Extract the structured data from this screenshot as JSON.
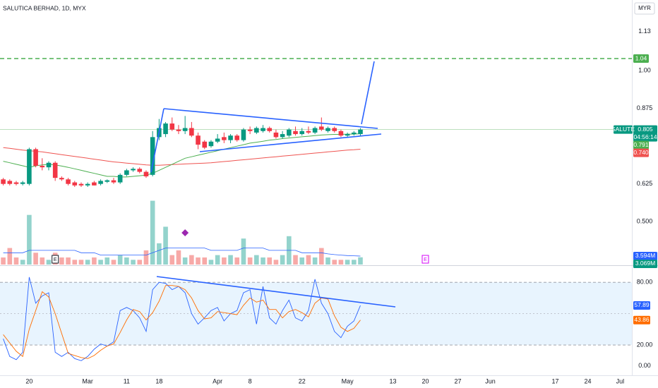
{
  "chart_data": [
    {
      "type": "candlestick",
      "title": "SALUTICA BERHAD, 1D, MYX",
      "currency": "MYR",
      "open": [
        0.64,
        0.635,
        0.63,
        0.625,
        0.625,
        0.74,
        0.685,
        0.68,
        0.695,
        0.645,
        0.64,
        0.63,
        0.625,
        0.62,
        0.63,
        0.625,
        0.632,
        0.637,
        0.63,
        0.655,
        0.67,
        0.675,
        0.665,
        0.655,
        0.78,
        0.79,
        0.825,
        0.805,
        0.8,
        0.81,
        0.785,
        0.765,
        0.75,
        0.765,
        0.78,
        0.77,
        0.785,
        0.77,
        0.805,
        0.795,
        0.8,
        0.81,
        0.795,
        0.78,
        0.785,
        0.8,
        0.79,
        0.8,
        0.795,
        0.815,
        0.8,
        0.81,
        0.8,
        0.785,
        0.79,
        0.79
      ],
      "high": [
        0.645,
        0.64,
        0.635,
        0.635,
        0.745,
        0.745,
        0.71,
        0.7,
        0.7,
        0.65,
        0.645,
        0.635,
        0.63,
        0.63,
        0.635,
        0.64,
        0.64,
        0.645,
        0.66,
        0.675,
        0.68,
        0.68,
        0.67,
        0.8,
        0.84,
        0.83,
        0.845,
        0.82,
        0.85,
        0.83,
        0.795,
        0.77,
        0.77,
        0.79,
        0.795,
        0.79,
        0.79,
        0.81,
        0.815,
        0.815,
        0.82,
        0.815,
        0.805,
        0.8,
        0.81,
        0.815,
        0.81,
        0.815,
        0.815,
        0.845,
        0.815,
        0.815,
        0.805,
        0.795,
        0.8,
        0.81
      ],
      "low": [
        0.62,
        0.62,
        0.62,
        0.62,
        0.62,
        0.68,
        0.67,
        0.67,
        0.635,
        0.635,
        0.62,
        0.615,
        0.615,
        0.615,
        0.62,
        0.62,
        0.628,
        0.625,
        0.625,
        0.65,
        0.665,
        0.66,
        0.645,
        0.65,
        0.77,
        0.78,
        0.8,
        0.79,
        0.79,
        0.78,
        0.74,
        0.74,
        0.745,
        0.76,
        0.76,
        0.76,
        0.765,
        0.765,
        0.79,
        0.79,
        0.795,
        0.795,
        0.775,
        0.775,
        0.78,
        0.785,
        0.785,
        0.79,
        0.79,
        0.8,
        0.795,
        0.795,
        0.78,
        0.78,
        0.785,
        0.785
      ],
      "close": [
        0.625,
        0.625,
        0.625,
        0.63,
        0.74,
        0.685,
        0.68,
        0.695,
        0.645,
        0.64,
        0.625,
        0.62,
        0.62,
        0.625,
        0.62,
        0.635,
        0.637,
        0.63,
        0.655,
        0.67,
        0.675,
        0.665,
        0.65,
        0.78,
        0.81,
        0.825,
        0.805,
        0.8,
        0.81,
        0.785,
        0.755,
        0.745,
        0.765,
        0.775,
        0.77,
        0.785,
        0.77,
        0.805,
        0.8,
        0.81,
        0.81,
        0.8,
        0.78,
        0.79,
        0.805,
        0.79,
        0.8,
        0.795,
        0.81,
        0.805,
        0.81,
        0.8,
        0.785,
        0.79,
        0.795,
        0.805
      ],
      "ma_fast": [
        0.7,
        0.695,
        0.69,
        0.685,
        0.68,
        0.685,
        0.688,
        0.69,
        0.688,
        0.684,
        0.68,
        0.675,
        0.67,
        0.665,
        0.66,
        0.655,
        0.65,
        0.65,
        0.648,
        0.648,
        0.65,
        0.652,
        0.654,
        0.66,
        0.67,
        0.68,
        0.69,
        0.7,
        0.71,
        0.715,
        0.72,
        0.725,
        0.73,
        0.735,
        0.74,
        0.745,
        0.75,
        0.755,
        0.76,
        0.763,
        0.766,
        0.77,
        0.772,
        0.775,
        0.777,
        0.779,
        0.781,
        0.783,
        0.785,
        0.787,
        0.788,
        0.789,
        0.789,
        0.79,
        0.79,
        0.791
      ],
      "ma_slow": [
        0.745,
        0.743,
        0.74,
        0.737,
        0.735,
        0.733,
        0.731,
        0.728,
        0.725,
        0.722,
        0.719,
        0.716,
        0.713,
        0.71,
        0.707,
        0.704,
        0.701,
        0.698,
        0.696,
        0.694,
        0.692,
        0.69,
        0.688,
        0.687,
        0.687,
        0.688,
        0.689,
        0.69,
        0.691,
        0.692,
        0.693,
        0.694,
        0.695,
        0.697,
        0.699,
        0.701,
        0.703,
        0.705,
        0.707,
        0.709,
        0.711,
        0.713,
        0.715,
        0.717,
        0.719,
        0.721,
        0.723,
        0.725,
        0.727,
        0.729,
        0.731,
        0.733,
        0.735,
        0.737,
        0.738,
        0.74
      ],
      "volume": [
        3,
        7,
        3,
        2,
        21,
        5,
        3,
        2,
        5,
        3,
        3,
        2,
        2,
        2,
        3,
        2,
        3,
        2,
        4,
        3,
        2,
        2,
        6,
        27,
        9,
        16,
        4,
        6,
        3,
        4,
        3,
        3,
        2,
        4,
        3,
        4,
        3,
        11,
        3,
        4,
        3,
        3,
        2,
        4,
        12,
        4,
        3,
        4,
        3,
        7,
        3,
        2,
        2,
        2,
        2,
        3.069
      ],
      "volume_ma": [
        5,
        5,
        5,
        5,
        6,
        6,
        6,
        6,
        6,
        6,
        6,
        6,
        5,
        5,
        5,
        4,
        4,
        4,
        4,
        4,
        4,
        4,
        4,
        5,
        6,
        7,
        7,
        7,
        7,
        7,
        7,
        7,
        6,
        6,
        6,
        6,
        6,
        7,
        7,
        7,
        7,
        6,
        6,
        6,
        6,
        6,
        5,
        5,
        5,
        5,
        4.5,
        4.2,
        4,
        3.8,
        3.7,
        3.594
      ],
      "up_color": "#089981",
      "down_color": "#f23645",
      "volume_up_color": "#93d3cc",
      "volume_down_color": "#f7a9a7",
      "ma_fast_color": "#4caf50",
      "ma_slow_color": "#ef5350",
      "volume_ma_color": "#2962ff",
      "xlim": [
        -0.5,
        96.8
      ],
      "ylim": [
        0.358,
        1.234
      ],
      "vlim": [
        0,
        40
      ],
      "yticks": [
        1.13,
        {
          "value": 1,
          "label": "1.00"
        },
        0.875,
        0.625,
        {
          "value": 0.5,
          "label": "0.500"
        }
      ],
      "grid": false,
      "target_level": 1.04,
      "target_color": "#4caf50",
      "earnings": [
        8,
        65
      ],
      "earnings_label": "E",
      "dividends": [
        28
      ],
      "last_labels": {
        "symbol": "SALUTE",
        "close": "0.805",
        "countdown": "04:56:14",
        "ma_fast": "0.791",
        "ma_slow": "0.740",
        "volume_ma": "3.594M",
        "volume": "3.069M",
        "target": "1.04"
      }
    },
    {
      "type": "line",
      "series": [
        {
          "color": "#2962ff",
          "values": [
            26,
            9,
            6,
            13,
            85,
            60,
            67,
            70,
            13,
            9,
            13,
            7,
            5,
            9,
            16,
            21,
            19,
            23,
            53,
            56,
            53,
            46,
            33,
            73,
            80,
            79,
            73,
            76,
            70,
            50,
            40,
            46,
            53,
            56,
            43,
            50,
            53,
            70,
            73,
            40,
            76,
            46,
            40,
            53,
            63,
            46,
            43,
            53,
            83,
            60,
            50,
            33,
            27,
            38,
            43,
            57.89
          ]
        },
        {
          "color": "#ff6d00",
          "values": [
            30,
            22,
            14,
            9,
            35,
            53,
            71,
            66,
            50,
            31,
            12,
            10,
            8,
            7,
            10,
            15,
            19,
            21,
            32,
            44,
            54,
            52,
            44,
            51,
            62,
            77,
            77,
            76,
            73,
            65,
            53,
            45,
            46,
            52,
            51,
            50,
            49,
            58,
            65,
            61,
            63,
            54,
            54,
            46,
            52,
            54,
            51,
            47,
            60,
            65,
            64,
            48,
            37,
            33,
            36,
            43.86
          ]
        }
      ],
      "value_labels": [
        "57.89",
        "43.86"
      ],
      "xlim": [
        -0.5,
        96.8
      ],
      "ylim": [
        -9,
        95
      ],
      "yticks": [
        {
          "value": 80,
          "label": "80.00"
        },
        {
          "value": 20,
          "label": "20.00"
        },
        {
          "value": 0,
          "label": "0.00"
        }
      ],
      "band": [
        20,
        80
      ],
      "midline": 50,
      "xticks": [
        {
          "value": 4,
          "label": "20"
        },
        {
          "value": 13,
          "label": "Mar"
        },
        {
          "value": 19,
          "label": "11"
        },
        {
          "value": 24,
          "label": "18"
        },
        {
          "value": 33,
          "label": "Apr"
        },
        {
          "value": 38,
          "label": "8"
        },
        {
          "value": 46,
          "label": "22"
        },
        {
          "value": 53,
          "label": "May"
        },
        {
          "value": 60,
          "label": "13"
        },
        {
          "value": 65,
          "label": "20"
        },
        {
          "value": 70,
          "label": "27"
        },
        {
          "value": 75,
          "label": "Jun"
        },
        {
          "value": 85,
          "label": "17"
        },
        {
          "value": 90,
          "label": "24"
        },
        {
          "value": 95,
          "label": "Jul"
        }
      ]
    }
  ]
}
